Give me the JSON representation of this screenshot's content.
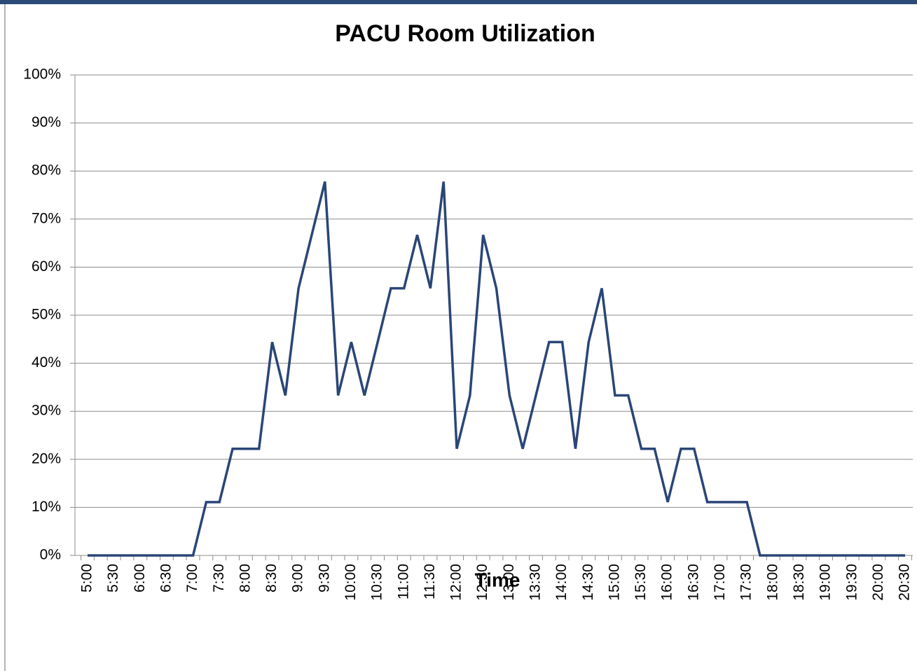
{
  "chart_data": {
    "type": "line",
    "title": "PACU Room Utilization",
    "x_label": "Time",
    "categories": [
      "5:00",
      null,
      "5:30",
      null,
      "6:00",
      null,
      "6:30",
      null,
      "7:00",
      null,
      "7:30",
      null,
      "8:00",
      null,
      "8:30",
      null,
      "9:00",
      null,
      "9:30",
      null,
      "10:00",
      null,
      "10:30",
      null,
      "11:00",
      null,
      "11:30",
      null,
      "12:00",
      null,
      "12:30",
      null,
      "13:00",
      null,
      "13:30",
      null,
      "14:00",
      null,
      "14:30",
      null,
      "15:00",
      null,
      "15:30",
      null,
      "16:00",
      null,
      "16:30",
      null,
      "17:00",
      null,
      "17:30",
      null,
      "18:00",
      null,
      "18:30",
      null,
      "19:00",
      null,
      "19:30",
      null,
      "20:00",
      null,
      "20:30"
    ],
    "series": [
      {
        "name": "Utilization",
        "color": "#2a4677",
        "values": [
          0,
          0,
          0,
          0,
          0,
          0,
          0,
          0,
          0,
          11.1,
          11.1,
          22.2,
          22.2,
          22.2,
          44.4,
          33.3,
          55.6,
          66.7,
          77.8,
          33.3,
          44.4,
          33.3,
          44.4,
          55.6,
          55.6,
          66.7,
          55.6,
          77.8,
          22.2,
          33.3,
          66.7,
          55.6,
          33.3,
          22.2,
          33.3,
          44.4,
          44.4,
          22.2,
          44.4,
          55.6,
          33.3,
          33.3,
          22.2,
          22.2,
          11.1,
          22.2,
          22.2,
          11.1,
          11.1,
          11.1,
          11.1,
          0,
          0,
          0,
          0,
          0,
          0,
          0,
          0,
          0,
          0,
          0,
          0
        ]
      }
    ],
    "ylim": [
      0,
      100
    ],
    "yticks": [
      {
        "value": 0,
        "label": "0%"
      },
      {
        "value": 10,
        "label": "10%"
      },
      {
        "value": 20,
        "label": "20%"
      },
      {
        "value": 30,
        "label": "30%"
      },
      {
        "value": 40,
        "label": "40%"
      },
      {
        "value": 50,
        "label": "50%"
      },
      {
        "value": 60,
        "label": "60%"
      },
      {
        "value": 70,
        "label": "70%"
      },
      {
        "value": 80,
        "label": "80%"
      },
      {
        "value": 90,
        "label": "90%"
      },
      {
        "value": 100,
        "label": "100%"
      }
    ],
    "grid": true
  }
}
